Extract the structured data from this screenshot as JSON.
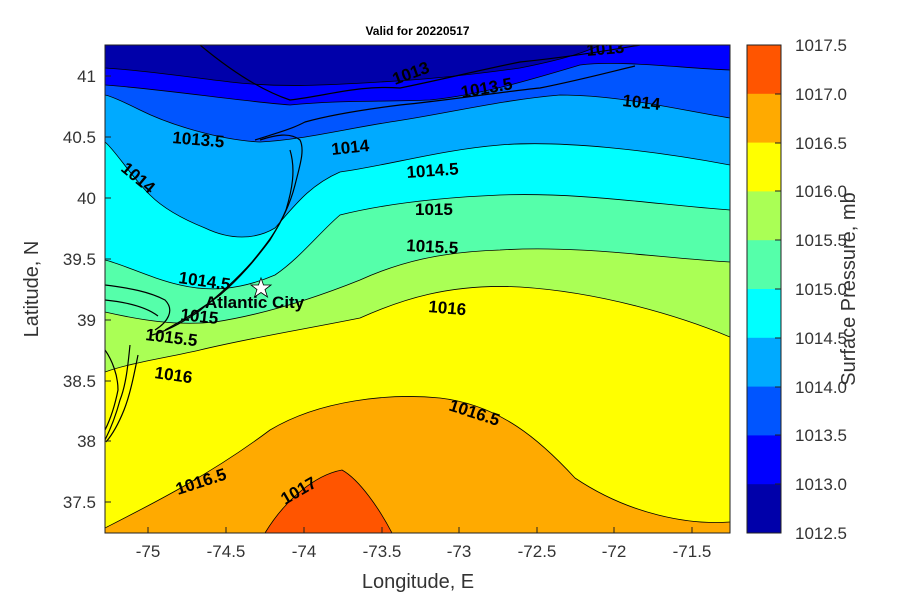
{
  "title": "Valid for 20220517",
  "xlabel": "Longitude, E",
  "ylabel": "Latitude, N",
  "colorbar_label": "Surface Pressure, mb",
  "x_ticks": [
    "-75",
    "-74.5",
    "-74",
    "-73.5",
    "-73",
    "-72.5",
    "-72",
    "-71.5"
  ],
  "y_ticks": [
    "41",
    "40.5",
    "40",
    "39.5",
    "39",
    "38.5",
    "38",
    "37.5"
  ],
  "colorbar_ticks": [
    "1017.5",
    "1017.0",
    "1016.5",
    "1016.0",
    "1015.5",
    "1015.0",
    "1014.5",
    "1014.0",
    "1013.5",
    "1013.0",
    "1012.5"
  ],
  "colorbar_colors": [
    "#ff5500",
    "#ffaa00",
    "#ffff00",
    "#aaff55",
    "#55ffaa",
    "#00ffff",
    "#00aaff",
    "#0055ff",
    "#0000ff",
    "#0000aa"
  ],
  "city_label": "Atlantic City",
  "chart_data": {
    "type": "heatmap",
    "title": "Valid for 20220517",
    "xlabel": "Longitude, E",
    "ylabel": "Latitude, N",
    "xlim": [
      -75.28,
      -71.25
    ],
    "ylim": [
      37.26,
      41.23
    ],
    "clim": [
      1012.5,
      1017.5
    ],
    "color_levels": [
      1012.5,
      1013.0,
      1013.5,
      1014.0,
      1014.5,
      1015.0,
      1015.5,
      1016.0,
      1016.5,
      1017.0,
      1017.5
    ],
    "contour_labels": [
      "1013",
      "1013",
      "1013.5",
      "1013.5",
      "1014",
      "1014",
      "1014",
      "1014.5",
      "1014.5",
      "1015",
      "1015",
      "1015.5",
      "1015.5",
      "1016",
      "1016",
      "1016.5",
      "1016.5",
      "1017"
    ],
    "marker": {
      "name": "Atlantic City",
      "lon": -74.26,
      "lat": 39.27
    }
  }
}
